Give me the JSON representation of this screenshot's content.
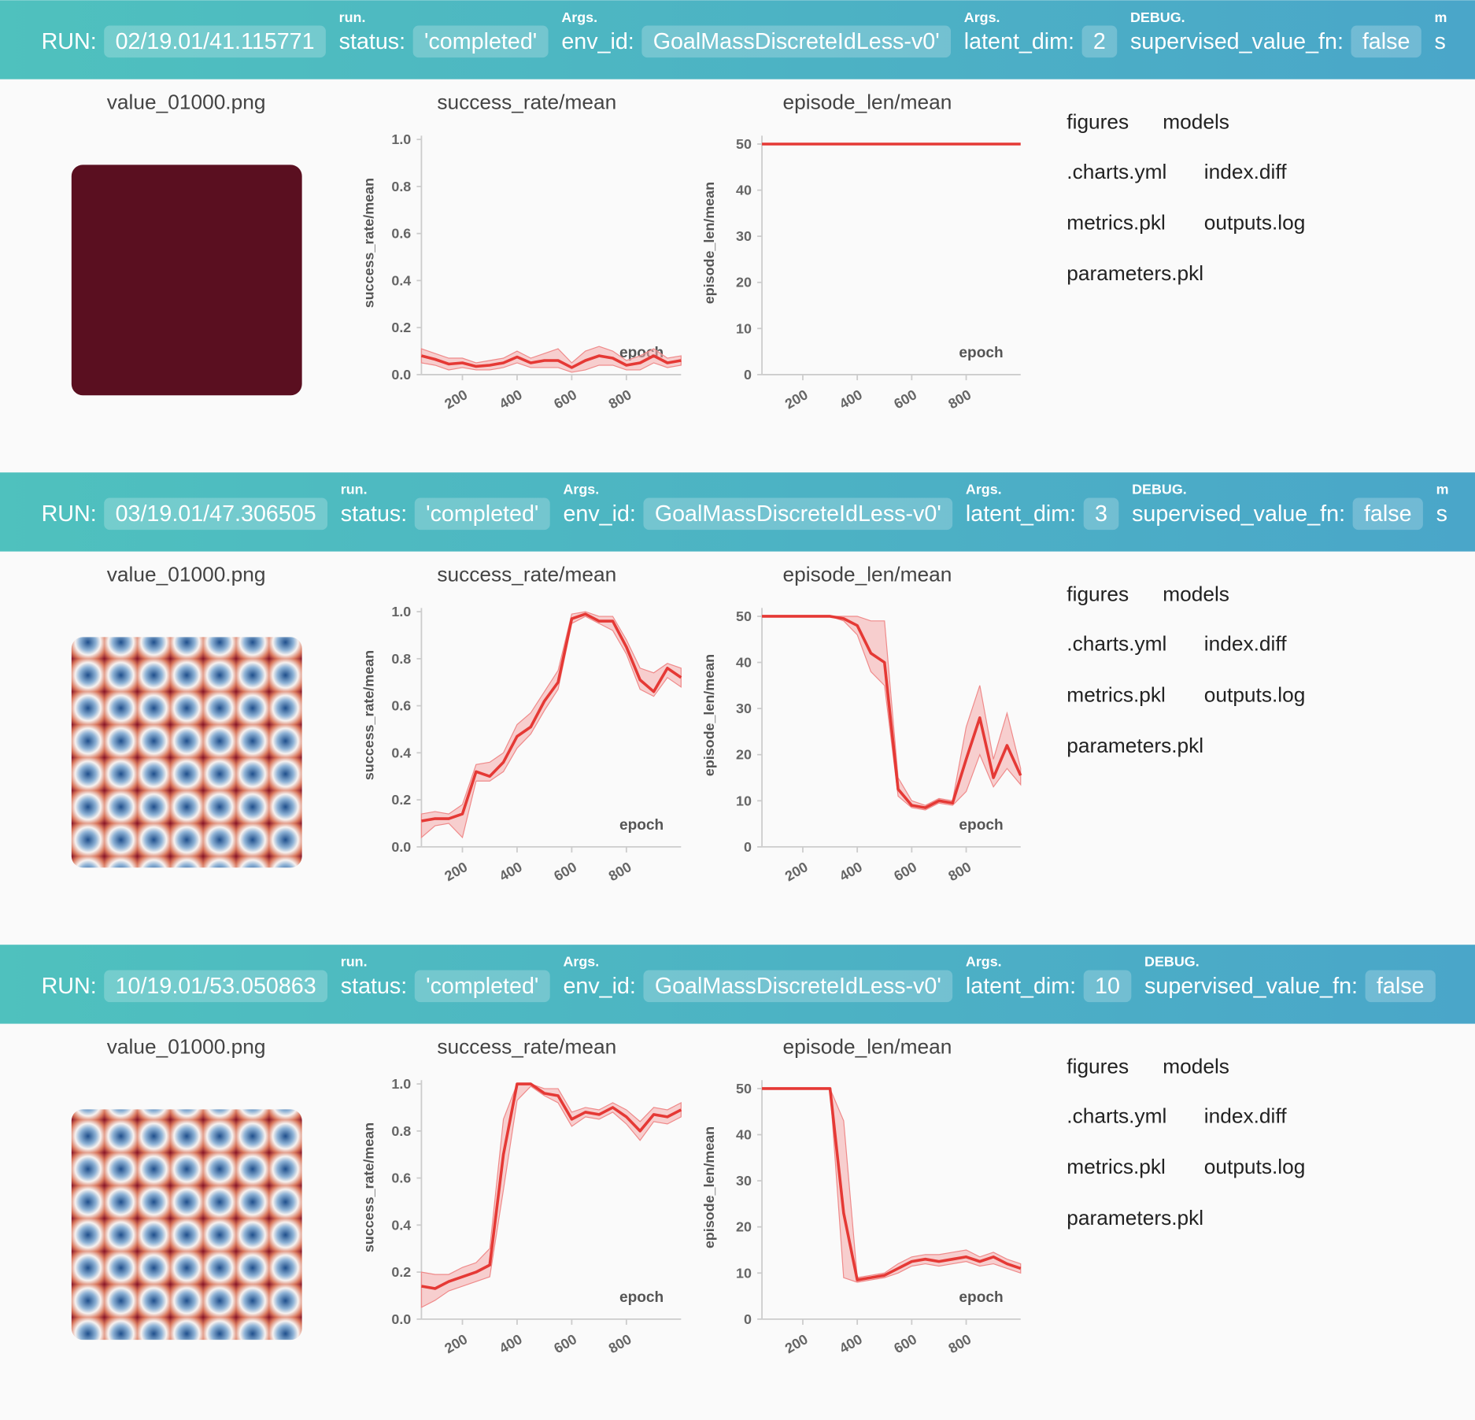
{
  "runs": [
    {
      "header": {
        "run_label": "RUN:",
        "run_id": "02/19.01/41.115771",
        "fields": [
          {
            "group": "run.",
            "label": "status:",
            "value": "'completed'"
          },
          {
            "group": "Args.",
            "label": "env_id:",
            "value": "GoalMassDiscreteIdLess-v0'"
          },
          {
            "group": "Args.",
            "label": "latent_dim:",
            "value": "2"
          },
          {
            "group": "DEBUG.",
            "label": "supervised_value_fn:",
            "value": "false"
          },
          {
            "group": "m",
            "label": "s"
          }
        ]
      },
      "image": {
        "title": "value_01000.png",
        "color": "#5a0f20"
      },
      "charts": [
        {
          "type": "line",
          "title": "success_rate/mean",
          "ylabel": "success_rate/mean",
          "xlabel": "epoch",
          "color": "#e53935",
          "x": [
            50,
            100,
            150,
            200,
            250,
            300,
            350,
            400,
            450,
            500,
            550,
            600,
            650,
            700,
            750,
            800,
            850,
            900,
            950,
            1000
          ],
          "values": [
            0.08,
            0.065,
            0.045,
            0.05,
            0.035,
            0.04,
            0.05,
            0.075,
            0.05,
            0.06,
            0.06,
            0.03,
            0.06,
            0.08,
            0.07,
            0.04,
            0.05,
            0.08,
            0.05,
            0.06
          ],
          "lower": [
            0.05,
            0.04,
            0.02,
            0.03,
            0.02,
            0.02,
            0.03,
            0.05,
            0.03,
            0.03,
            0.03,
            0.01,
            0.02,
            0.04,
            0.04,
            0.02,
            0.02,
            0.05,
            0.03,
            0.04
          ],
          "upper": [
            0.11,
            0.09,
            0.07,
            0.07,
            0.05,
            0.06,
            0.07,
            0.1,
            0.07,
            0.09,
            0.11,
            0.05,
            0.1,
            0.12,
            0.1,
            0.06,
            0.08,
            0.11,
            0.07,
            0.08
          ],
          "xlim": [
            50,
            1000
          ],
          "ylim": [
            0,
            1
          ],
          "xticks": [
            200,
            400,
            600,
            800
          ],
          "yticks": [
            {
              "value": 0,
              "label": "0.0"
            },
            0.2,
            0.4,
            0.6,
            0.8,
            {
              "value": 1,
              "label": "1.0"
            }
          ]
        },
        {
          "type": "line",
          "title": "episode_len/mean",
          "ylabel": "episode_len/mean",
          "xlabel": "epoch",
          "color": "#e53935",
          "x": [
            50,
            100,
            150,
            200,
            250,
            300,
            350,
            400,
            450,
            500,
            550,
            600,
            650,
            700,
            750,
            800,
            850,
            900,
            950,
            1000
          ],
          "values": [
            50,
            50,
            50,
            50,
            50,
            50,
            50,
            50,
            50,
            50,
            50,
            50,
            50,
            50,
            50,
            50,
            50,
            50,
            50,
            50
          ],
          "xlim": [
            50,
            1000
          ],
          "ylim": [
            0,
            51
          ],
          "xticks": [
            200,
            400,
            600,
            800
          ],
          "yticks": [
            0,
            10,
            20,
            30,
            40,
            50
          ]
        }
      ],
      "files": [
        "figures",
        "models",
        ".charts.yml",
        "index.diff",
        "metrics.pkl",
        "outputs.log",
        "parameters.pkl"
      ]
    },
    {
      "header": {
        "run_label": "RUN:",
        "run_id": "03/19.01/47.306505",
        "fields": [
          {
            "group": "run.",
            "label": "status:",
            "value": "'completed'"
          },
          {
            "group": "Args.",
            "label": "env_id:",
            "value": "GoalMassDiscreteIdLess-v0'"
          },
          {
            "group": "Args.",
            "label": "latent_dim:",
            "value": "3"
          },
          {
            "group": "DEBUG.",
            "label": "supervised_value_fn:",
            "value": "false"
          },
          {
            "group": "m",
            "label": "s"
          }
        ]
      },
      "image": {
        "title": "value_01000.png"
      },
      "charts": [
        {
          "type": "line",
          "title": "success_rate/mean",
          "ylabel": "success_rate/mean",
          "xlabel": "epoch",
          "color": "#e53935",
          "x": [
            50,
            100,
            150,
            200,
            250,
            300,
            350,
            400,
            450,
            500,
            550,
            600,
            650,
            700,
            750,
            800,
            850,
            900,
            950,
            1000
          ],
          "values": [
            0.11,
            0.12,
            0.12,
            0.14,
            0.32,
            0.3,
            0.36,
            0.47,
            0.51,
            0.62,
            0.7,
            0.97,
            0.99,
            0.96,
            0.96,
            0.85,
            0.71,
            0.66,
            0.76,
            0.72
          ],
          "lower": [
            0.04,
            0.09,
            0.1,
            0.04,
            0.28,
            0.28,
            0.32,
            0.42,
            0.48,
            0.58,
            0.67,
            0.95,
            0.98,
            0.95,
            0.92,
            0.82,
            0.67,
            0.64,
            0.72,
            0.68
          ],
          "upper": [
            0.14,
            0.15,
            0.14,
            0.18,
            0.35,
            0.36,
            0.4,
            0.52,
            0.57,
            0.66,
            0.75,
            0.99,
            1.0,
            0.98,
            0.98,
            0.88,
            0.76,
            0.74,
            0.78,
            0.76
          ],
          "xlim": [
            50,
            1000
          ],
          "ylim": [
            0,
            1
          ],
          "xticks": [
            200,
            400,
            600,
            800
          ],
          "yticks": [
            {
              "value": 0,
              "label": "0.0"
            },
            0.2,
            0.4,
            0.6,
            0.8,
            {
              "value": 1,
              "label": "1.0"
            }
          ]
        },
        {
          "type": "line",
          "title": "episode_len/mean",
          "ylabel": "episode_len/mean",
          "xlabel": "epoch",
          "color": "#e53935",
          "x": [
            50,
            100,
            150,
            200,
            250,
            300,
            350,
            400,
            450,
            500,
            550,
            600,
            650,
            700,
            750,
            800,
            850,
            900,
            950,
            1000
          ],
          "values": [
            50,
            50,
            50,
            50,
            50,
            50,
            49.5,
            48,
            42,
            40,
            12.5,
            9,
            8.5,
            10,
            9.5,
            19,
            28,
            15,
            22,
            15.5
          ],
          "lower": [
            50,
            50,
            50,
            50,
            50,
            50,
            49,
            46,
            38,
            35,
            11,
            8.5,
            8,
            9.5,
            9,
            12,
            20,
            13,
            17,
            13.5
          ],
          "upper": [
            50,
            50,
            50,
            50,
            50,
            50,
            50,
            50,
            49,
            49,
            15,
            10,
            9,
            10.5,
            10,
            26,
            35,
            19,
            29,
            17
          ],
          "xlim": [
            50,
            1000
          ],
          "ylim": [
            0,
            51
          ],
          "xticks": [
            200,
            400,
            600,
            800
          ],
          "yticks": [
            0,
            10,
            20,
            30,
            40,
            50
          ]
        }
      ],
      "files": [
        "figures",
        "models",
        ".charts.yml",
        "index.diff",
        "metrics.pkl",
        "outputs.log",
        "parameters.pkl"
      ]
    },
    {
      "header": {
        "run_label": "RUN:",
        "run_id": "10/19.01/53.050863",
        "fields": [
          {
            "group": "run.",
            "label": "status:",
            "value": "'completed'"
          },
          {
            "group": "Args.",
            "label": "env_id:",
            "value": "GoalMassDiscreteIdLess-v0'"
          },
          {
            "group": "Args.",
            "label": "latent_dim:",
            "value": "10"
          },
          {
            "group": "DEBUG.",
            "label": "supervised_value_fn:",
            "value": "false"
          }
        ]
      },
      "image": {
        "title": "value_01000.png"
      },
      "charts": [
        {
          "type": "line",
          "title": "success_rate/mean",
          "ylabel": "success_rate/mean",
          "xlabel": "epoch",
          "color": "#e53935",
          "x": [
            50,
            100,
            150,
            200,
            250,
            300,
            350,
            400,
            450,
            500,
            550,
            600,
            650,
            700,
            750,
            800,
            850,
            900,
            950,
            1000
          ],
          "values": [
            0.14,
            0.13,
            0.16,
            0.18,
            0.2,
            0.23,
            0.7,
            1.0,
            1.0,
            0.96,
            0.95,
            0.85,
            0.88,
            0.87,
            0.9,
            0.86,
            0.8,
            0.87,
            0.86,
            0.89
          ],
          "lower": [
            0.05,
            0.08,
            0.12,
            0.14,
            0.16,
            0.18,
            0.55,
            0.93,
            0.99,
            0.95,
            0.92,
            0.82,
            0.86,
            0.85,
            0.88,
            0.83,
            0.76,
            0.84,
            0.83,
            0.86
          ],
          "upper": [
            0.2,
            0.19,
            0.19,
            0.22,
            0.24,
            0.3,
            0.85,
            1.0,
            1.0,
            0.98,
            0.98,
            0.88,
            0.9,
            0.89,
            0.92,
            0.89,
            0.84,
            0.9,
            0.89,
            0.92
          ],
          "xlim": [
            50,
            1000
          ],
          "ylim": [
            0,
            1
          ],
          "xticks": [
            200,
            400,
            600,
            800
          ],
          "yticks": [
            {
              "value": 0,
              "label": "0.0"
            },
            0.2,
            0.4,
            0.6,
            0.8,
            {
              "value": 1,
              "label": "1.0"
            }
          ]
        },
        {
          "type": "line",
          "title": "episode_len/mean",
          "ylabel": "episode_len/mean",
          "xlabel": "epoch",
          "color": "#e53935",
          "x": [
            50,
            100,
            150,
            200,
            250,
            300,
            350,
            400,
            450,
            500,
            550,
            600,
            650,
            700,
            750,
            800,
            850,
            900,
            950,
            1000
          ],
          "values": [
            50,
            50,
            50,
            50,
            50,
            50,
            23,
            8.5,
            9,
            9.5,
            11,
            12.5,
            13,
            12.5,
            13,
            13.5,
            12.5,
            13.5,
            12,
            11
          ],
          "lower": [
            50,
            50,
            50,
            50,
            50,
            50,
            9,
            8,
            8.5,
            9,
            10,
            11.5,
            12,
            11.5,
            12,
            12.5,
            11.5,
            12,
            11,
            10
          ],
          "upper": [
            50,
            50,
            50,
            50,
            50,
            50,
            43,
            9,
            9.5,
            10,
            12,
            13.5,
            14,
            14,
            14.5,
            15,
            13.5,
            14.5,
            13,
            12
          ],
          "xlim": [
            50,
            1000
          ],
          "ylim": [
            0,
            51
          ],
          "xticks": [
            200,
            400,
            600,
            800
          ],
          "yticks": [
            0,
            10,
            20,
            30,
            40,
            50
          ]
        }
      ],
      "files": [
        "figures",
        "models",
        ".charts.yml",
        "index.diff",
        "metrics.pkl",
        "outputs.log",
        "parameters.pkl"
      ]
    }
  ]
}
